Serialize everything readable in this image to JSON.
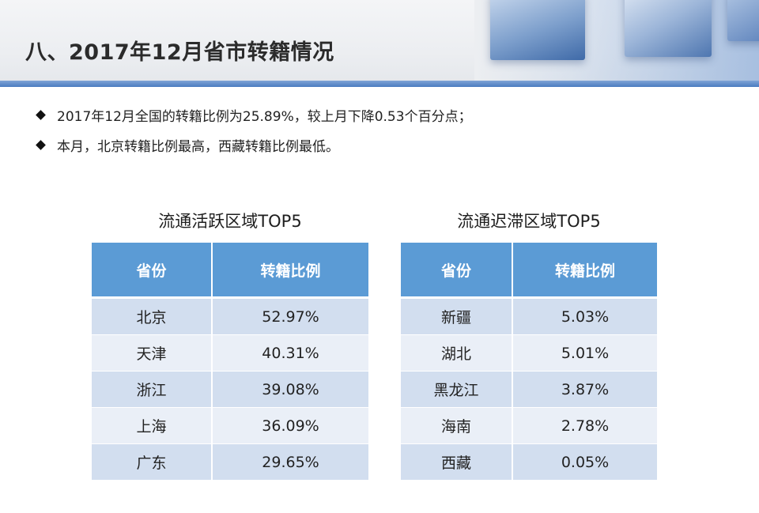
{
  "slide": {
    "title": "八、2017年12月省市转籍情况",
    "bullets": [
      "2017年12月全国的转籍比例为25.89%，较上月下降0.53个百分点；",
      "本月，北京转籍比例最高，西藏转籍比例最低。"
    ]
  },
  "active_table": {
    "title": "流通活跃区域TOP5",
    "headers": [
      "省份",
      "转籍比例"
    ],
    "rows": [
      [
        "北京",
        "52.97%"
      ],
      [
        "天津",
        "40.31%"
      ],
      [
        "浙江",
        "39.08%"
      ],
      [
        "上海",
        "36.09%"
      ],
      [
        "广东",
        "29.65%"
      ]
    ]
  },
  "stagnant_table": {
    "title": "流通迟滞区域TOP5",
    "headers": [
      "省份",
      "转籍比例"
    ],
    "rows": [
      [
        "新疆",
        "5.03%"
      ],
      [
        "湖北",
        "5.01%"
      ],
      [
        "黑龙江",
        "3.87%"
      ],
      [
        "海南",
        "2.78%"
      ],
      [
        "西藏",
        "0.05%"
      ]
    ]
  },
  "colors": {
    "header_fill": "#5b9bd5",
    "row_dark": "#d2deef",
    "row_light": "#eaeff7",
    "accent_bar": "#4a7cc0"
  }
}
